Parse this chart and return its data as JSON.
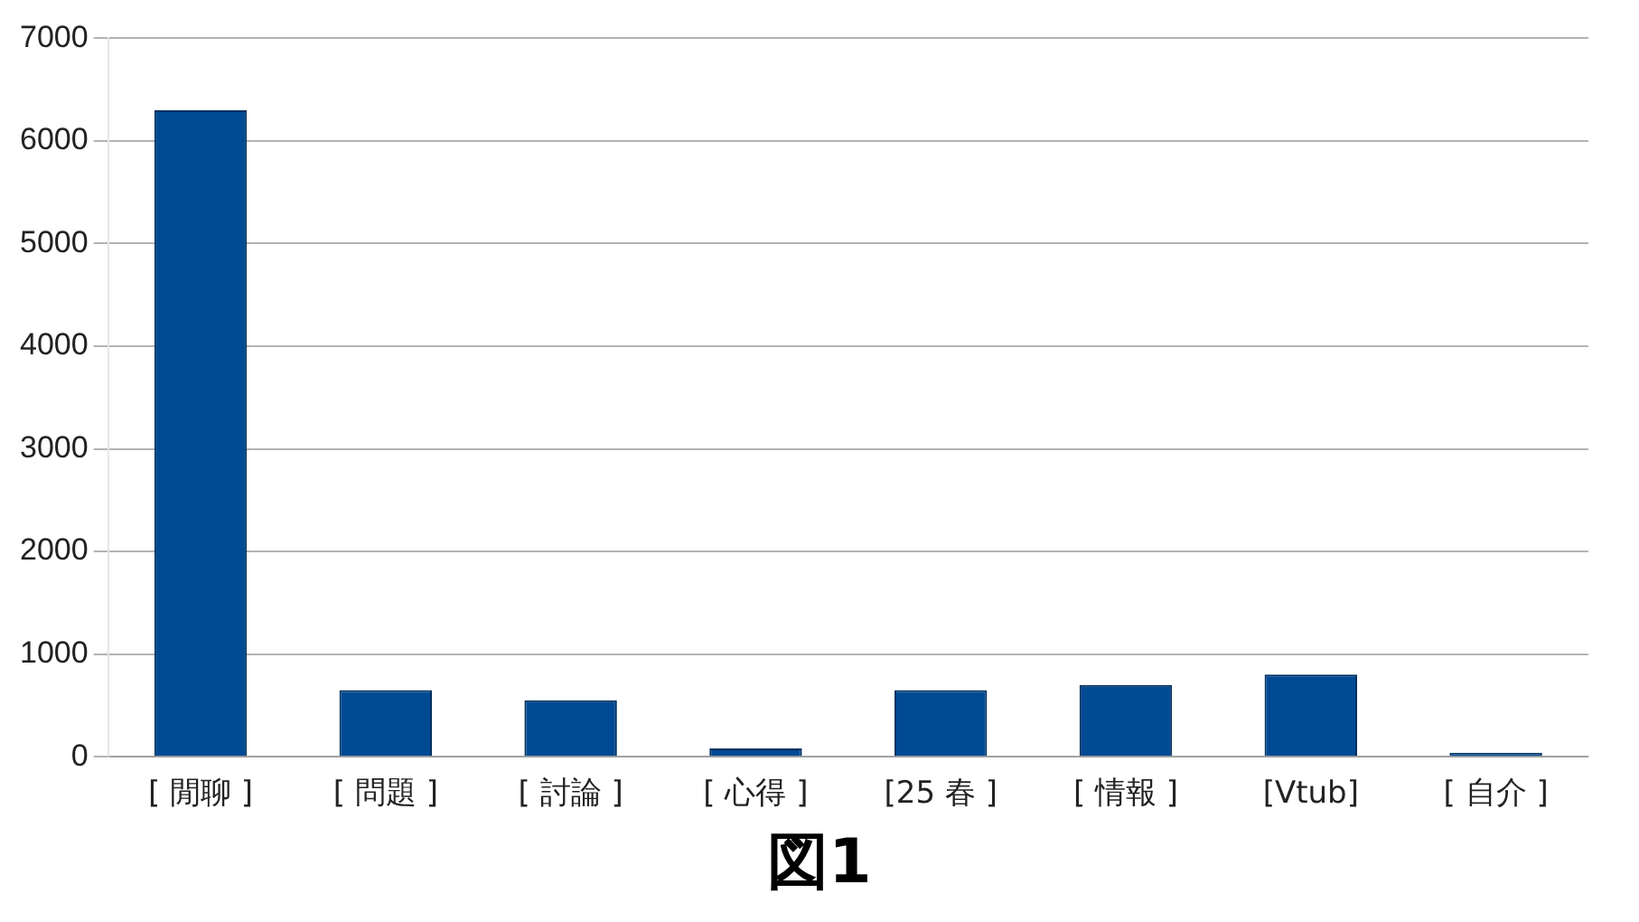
{
  "chart_data": {
    "type": "bar",
    "categories": [
      "[ 閒聊 ]",
      "[ 問題 ]",
      "[ 討論 ]",
      "[ 心得 ]",
      "[25 春 ]",
      "[ 情報 ]",
      "[Vtub]",
      "[ 自介 ]"
    ],
    "values": [
      6300,
      650,
      550,
      80,
      650,
      700,
      800,
      40
    ],
    "color": "#004a94",
    "ylim": [
      0,
      7000
    ],
    "yticks": [
      0,
      1000,
      2000,
      3000,
      4000,
      5000,
      6000,
      7000
    ],
    "grid": "y",
    "annotations": [
      "図1"
    ]
  }
}
